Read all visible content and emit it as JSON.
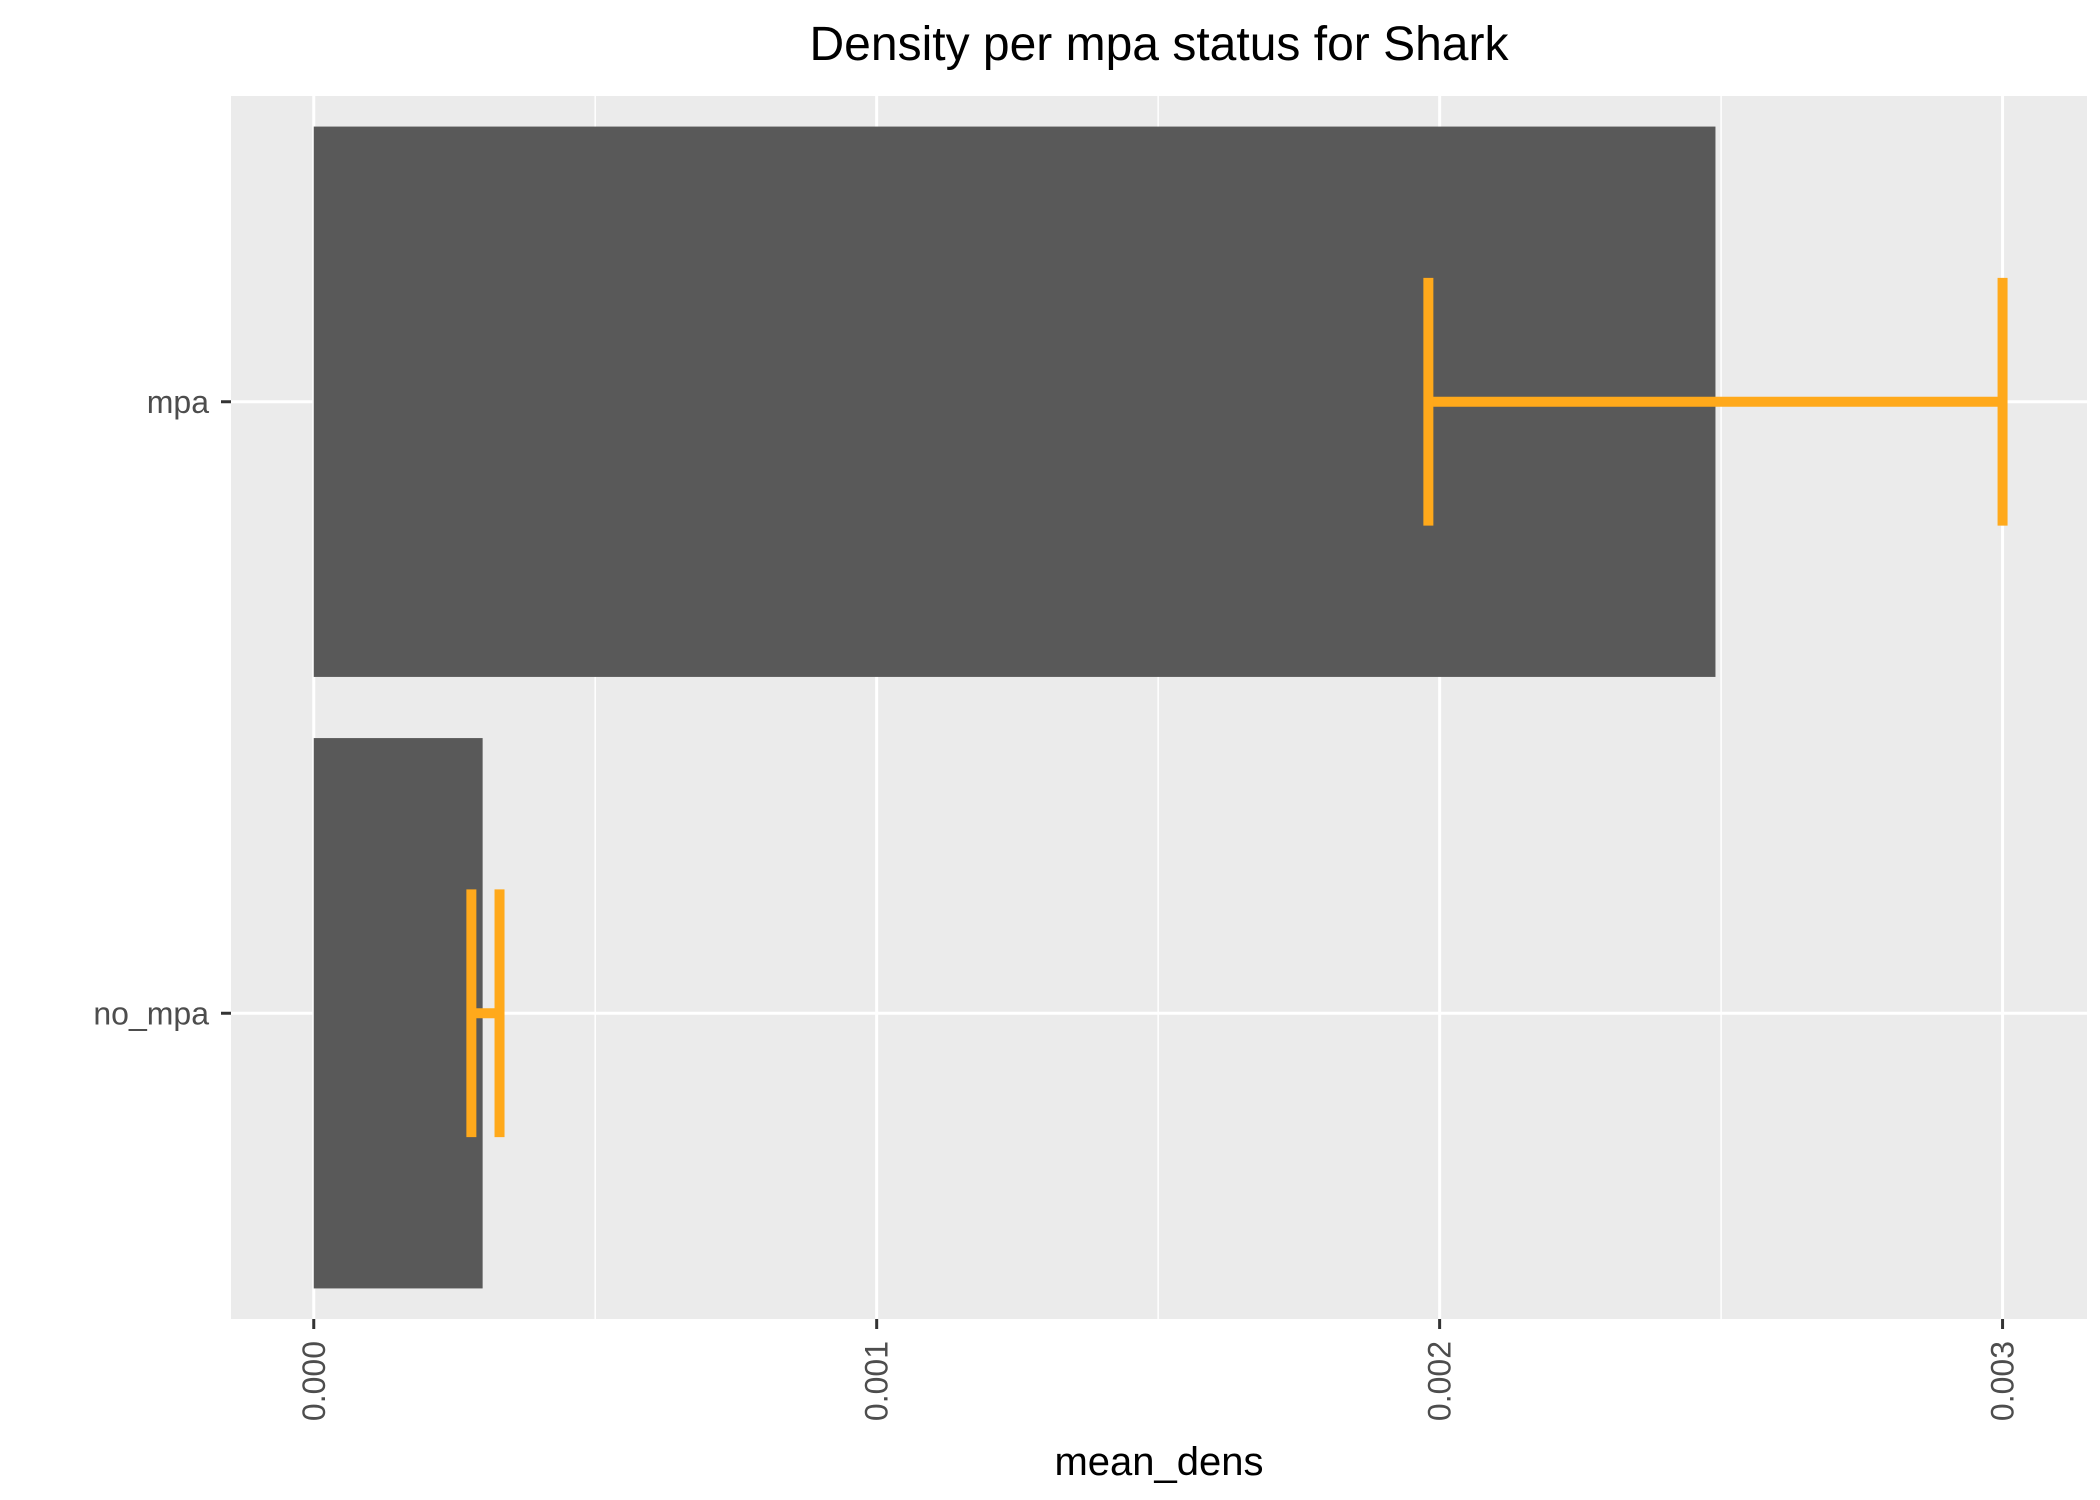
{
  "chart_data": {
    "type": "bar",
    "orientation": "horizontal",
    "title": "Density per mpa status for Shark",
    "xlabel": "mean_dens",
    "ylabel": "",
    "categories": [
      "mpa",
      "no_mpa"
    ],
    "values": [
      0.00249,
      0.0003
    ],
    "error_bars": [
      {
        "category": "mpa",
        "low": 0.00198,
        "high": 0.003
      },
      {
        "category": "no_mpa",
        "low": 0.00028,
        "high": 0.00033
      }
    ],
    "xlim": [
      -0.000147,
      0.00315
    ],
    "x_ticks": [
      "0.000",
      "0.001",
      "0.002",
      "0.003"
    ],
    "x_tick_values": [
      0,
      0.001,
      0.002,
      0.003
    ],
    "x_tick_label_rotation": "vertical",
    "grid": true,
    "legend": "none",
    "colors": {
      "bar": "#595959",
      "error_bar": "#FFA91B",
      "panel_background": "#EBEBEB",
      "grid": "#FFFFFF",
      "tick_label": "#4D4D4D",
      "title": "#000000"
    }
  }
}
